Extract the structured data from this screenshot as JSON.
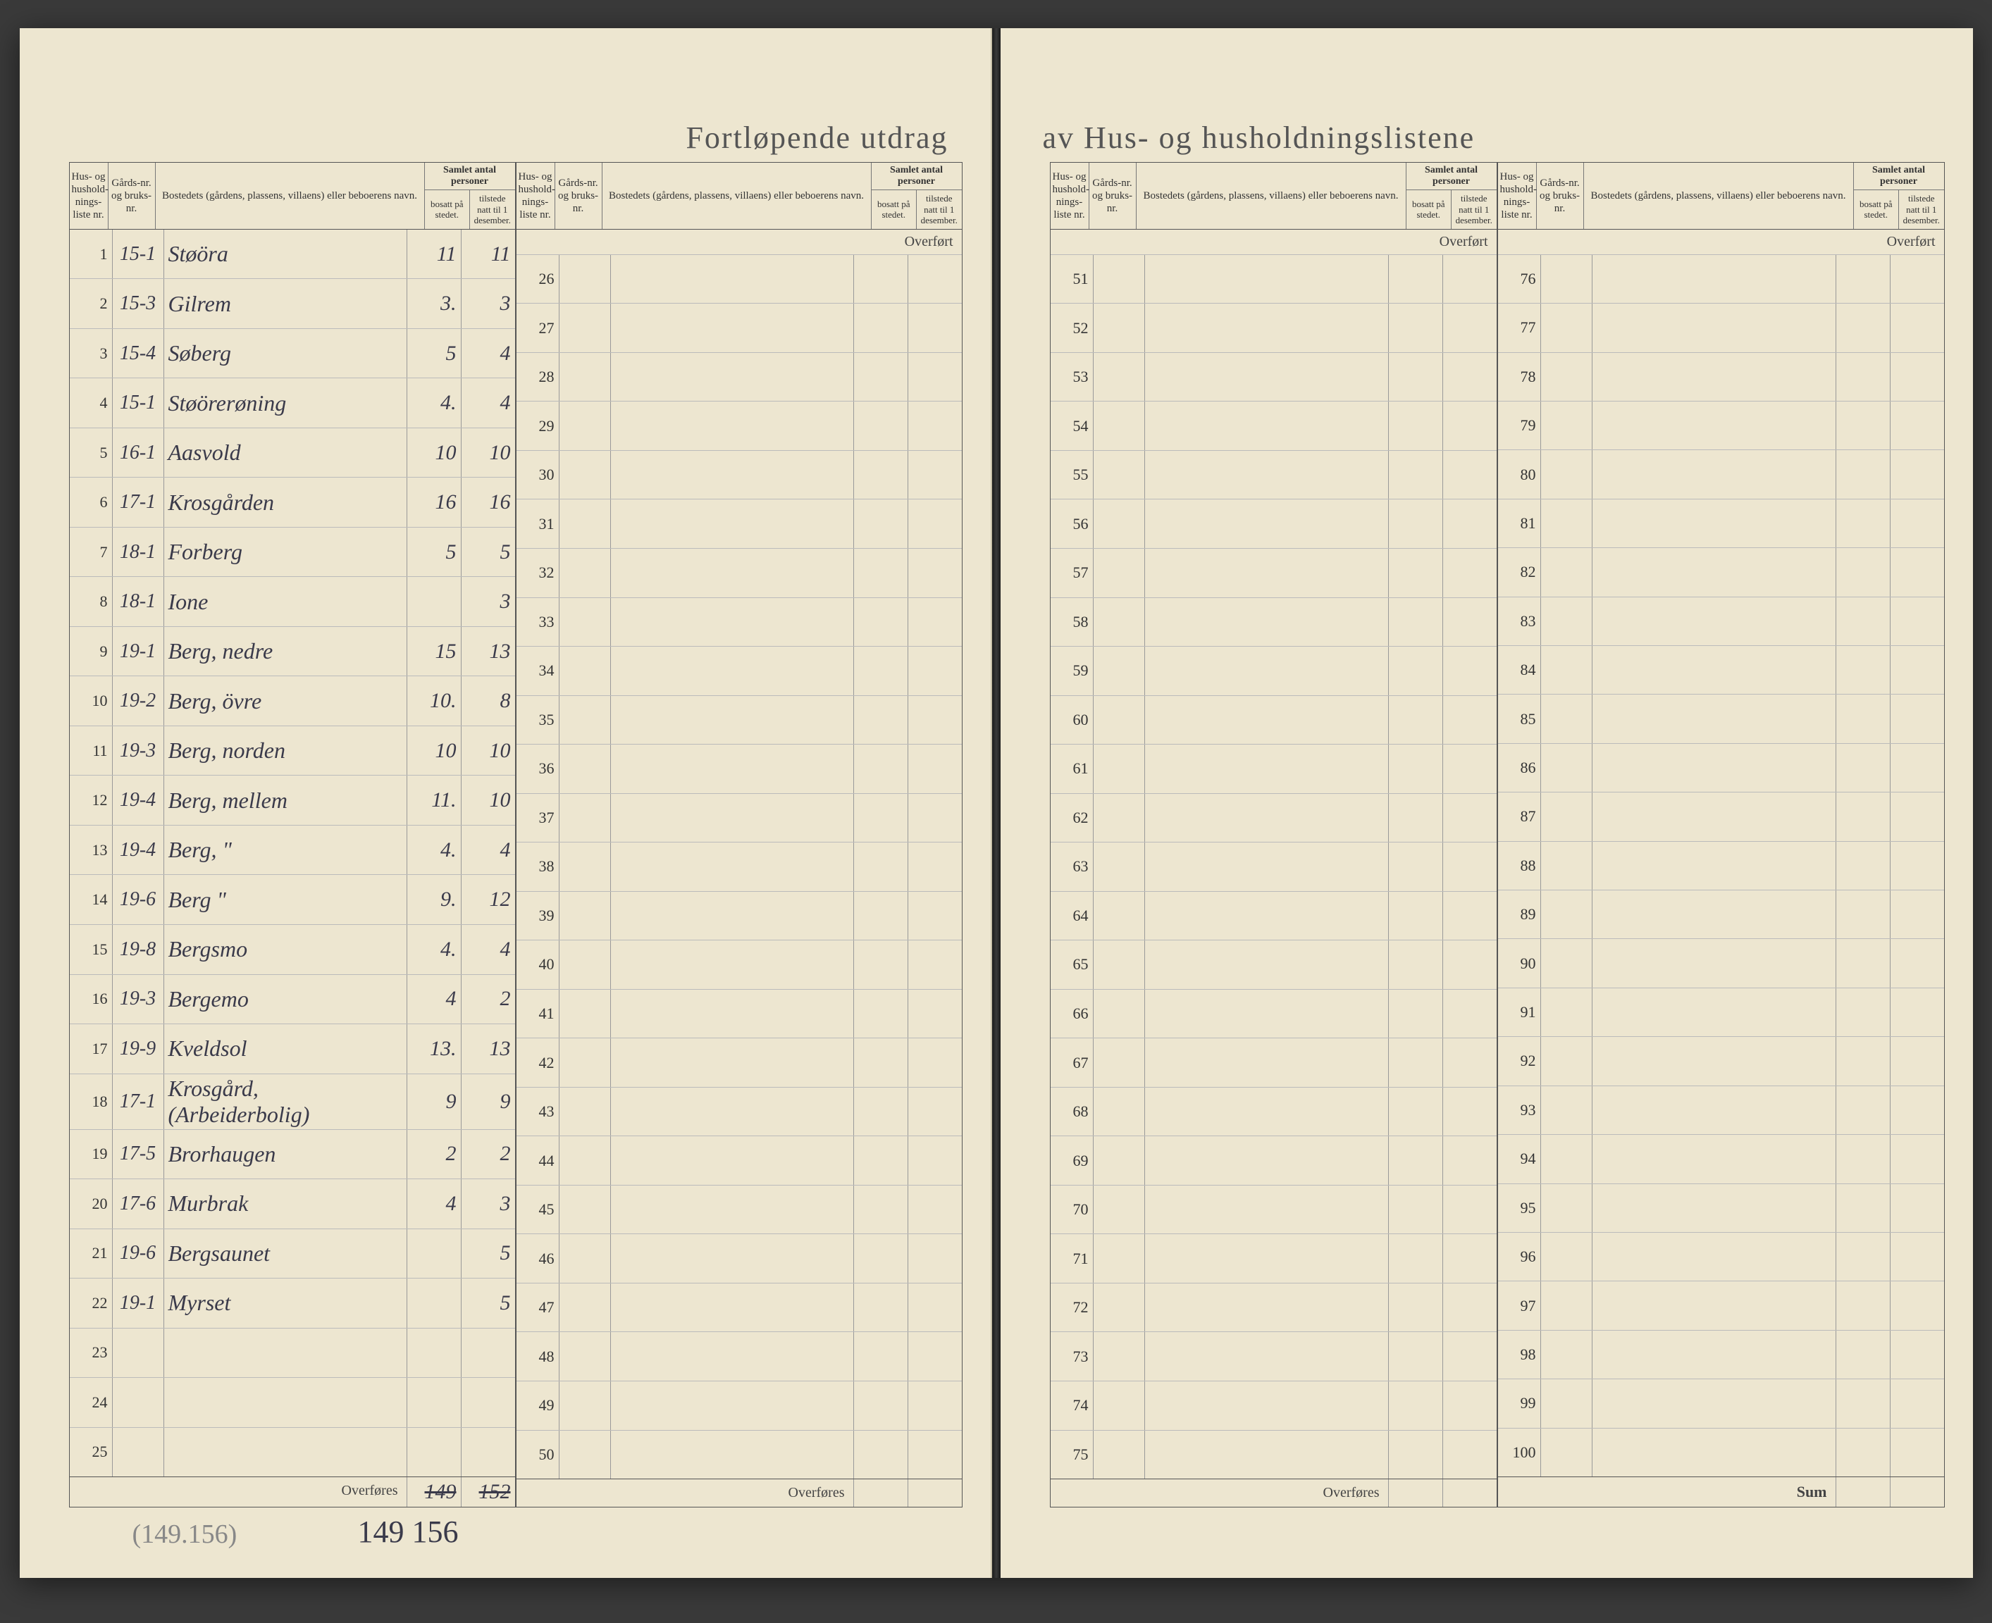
{
  "title_left": "Fortløpende utdrag",
  "title_right": "av Hus- og husholdningslistene",
  "headers": {
    "liste": "Hus- og hushold-nings-liste nr.",
    "gard": "Gårds-nr. og bruks-nr.",
    "navn": "Bostedets (gårdens, plassens, villaens) eller beboerens navn.",
    "group": "Samlet antal personer",
    "bosatt": "bosatt på stedet.",
    "tilstede": "tilstede natt til 1 desember."
  },
  "overfort": "Overført",
  "overfores": "Overføres",
  "sum": "Sum",
  "block1": [
    {
      "n": "1",
      "g": "15-1",
      "navn": "Støöra",
      "b": "11",
      "t": "11"
    },
    {
      "n": "2",
      "g": "15-3",
      "navn": "Gilrem",
      "b": "3.",
      "t": "3"
    },
    {
      "n": "3",
      "g": "15-4",
      "navn": "Søberg",
      "b": "5",
      "t": "4"
    },
    {
      "n": "4",
      "g": "15-1",
      "navn": "Støörerøning",
      "b": "4.",
      "t": "4"
    },
    {
      "n": "5",
      "g": "16-1",
      "navn": "Aasvold",
      "b": "10",
      "t": "10"
    },
    {
      "n": "6",
      "g": "17-1",
      "navn": "Krosgården",
      "b": "16",
      "t": "16"
    },
    {
      "n": "7",
      "g": "18-1",
      "navn": "Forberg",
      "b": "5",
      "t": "5"
    },
    {
      "n": "8",
      "g": "18-1",
      "navn": "Ione",
      "b": "",
      "t": "3"
    },
    {
      "n": "9",
      "g": "19-1",
      "navn": "Berg, nedre",
      "b": "15",
      "t": "13"
    },
    {
      "n": "10",
      "g": "19-2",
      "navn": "Berg, övre",
      "b": "10.",
      "t": "8"
    },
    {
      "n": "11",
      "g": "19-3",
      "navn": "Berg, norden",
      "b": "10",
      "t": "10"
    },
    {
      "n": "12",
      "g": "19-4",
      "navn": "Berg, mellem",
      "b": "11.",
      "t": "10"
    },
    {
      "n": "13",
      "g": "19-4",
      "navn": "Berg,    \"",
      "b": "4.",
      "t": "4"
    },
    {
      "n": "14",
      "g": "19-6",
      "navn": "Berg     \"",
      "b": "9.",
      "t": "12"
    },
    {
      "n": "15",
      "g": "19-8",
      "navn": "Bergsmo",
      "b": "4.",
      "t": "4"
    },
    {
      "n": "16",
      "g": "19-3",
      "navn": "Bergemo",
      "b": "4",
      "t": "2"
    },
    {
      "n": "17",
      "g": "19-9",
      "navn": "Kveldsol",
      "b": "13.",
      "t": "13"
    },
    {
      "n": "18",
      "g": "17-1",
      "navn": "Krosgård, (Arbeiderbolig)",
      "b": "9",
      "t": "9"
    },
    {
      "n": "19",
      "g": "17-5",
      "navn": "Brorhaugen",
      "b": "2",
      "t": "2"
    },
    {
      "n": "20",
      "g": "17-6",
      "navn": "Murbrak",
      "b": "4",
      "t": "3"
    },
    {
      "n": "21",
      "g": "19-6",
      "navn": "Bergsaunet",
      "b": "",
      "t": "5"
    },
    {
      "n": "22",
      "g": "19-1",
      "navn": "Myrset",
      "b": "",
      "t": "5"
    },
    {
      "n": "23",
      "g": "",
      "navn": "",
      "b": "",
      "t": ""
    },
    {
      "n": "24",
      "g": "",
      "navn": "",
      "b": "",
      "t": ""
    },
    {
      "n": "25",
      "g": "",
      "navn": "",
      "b": "",
      "t": ""
    }
  ],
  "block2_start": 26,
  "block3_start": 51,
  "block4_start": 76,
  "footer": {
    "b_struck": "149",
    "t_struck": "152"
  },
  "pencil": "(149.156)",
  "corrected": "149  156",
  "colors": {
    "paper": "#ede6d0",
    "ink": "#3a3a4a",
    "rule": "#555",
    "light_rule": "#bbb"
  }
}
